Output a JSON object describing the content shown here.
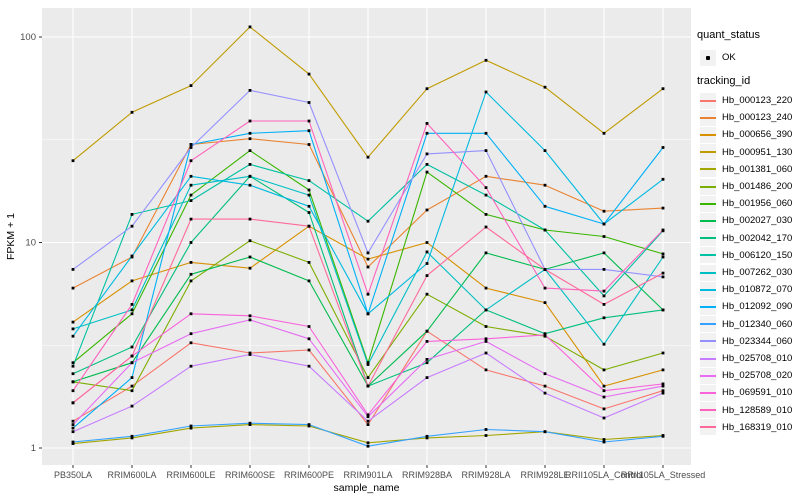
{
  "legend": {
    "quant_status": {
      "title": "quant_status",
      "items": [
        {
          "label": "OK",
          "symbol": "black-point"
        }
      ]
    },
    "tracking_id": {
      "title": "tracking_id"
    }
  },
  "chart_data": {
    "type": "line",
    "title": "",
    "xlabel": "sample_name",
    "ylabel": "FPKM + 1",
    "y_scale": "log10",
    "y_ticks": [
      1,
      10,
      100
    ],
    "y_minor_ticks": [
      3.162,
      31.623
    ],
    "ylim": [
      0.83,
      139
    ],
    "grid": true,
    "panel_bg": "#EBEBEB",
    "grid_color": "#FFFFFF",
    "tick_label_color": "#4D4D4D",
    "point_color": "#000000",
    "legend_position": "right",
    "quant_status_value": "OK",
    "categories": [
      "PB350LA",
      "RRIM600LA",
      "RRIM600LE",
      "RRIM600SE",
      "RRIM600PE",
      "RRIM901LA",
      "RRIM928BA",
      "RRIM928LA",
      "RRIM928LE",
      "RRII105LA_Control",
      "RRII105LA_Stressed"
    ],
    "series": [
      {
        "name": "Hb_000123_220",
        "color": "#F8766D",
        "values": [
          1.35,
          2.0,
          3.25,
          2.9,
          3.0,
          1.3,
          3.7,
          2.4,
          2.0,
          1.55,
          1.9
        ]
      },
      {
        "name": "Hb_000123_240",
        "color": "#EA8331",
        "values": [
          6.0,
          8.5,
          30,
          32,
          30,
          7.6,
          14.4,
          21,
          19,
          14.2,
          14.7
        ]
      },
      {
        "name": "Hb_000656_390",
        "color": "#D89000",
        "values": [
          4.1,
          6.5,
          8.0,
          7.5,
          12,
          8.3,
          10,
          6.0,
          5.1,
          2.0,
          2.4
        ]
      },
      {
        "name": "Hb_000951_130",
        "color": "#C09B00",
        "values": [
          25,
          43,
          58,
          112,
          66,
          26,
          56,
          77,
          57,
          34,
          56
        ]
      },
      {
        "name": "Hb_001381_060",
        "color": "#A3A500",
        "values": [
          1.05,
          1.12,
          1.25,
          1.3,
          1.28,
          1.06,
          1.12,
          1.15,
          1.2,
          1.1,
          1.15
        ]
      },
      {
        "name": "Hb_001486_200",
        "color": "#7CAE00",
        "values": [
          2.1,
          1.9,
          6.5,
          10.2,
          8.0,
          2.2,
          5.6,
          3.9,
          3.5,
          2.4,
          2.9
        ]
      },
      {
        "name": "Hb_001956_060",
        "color": "#39B600",
        "values": [
          2.6,
          4.5,
          17,
          28,
          18,
          2.6,
          22,
          13.7,
          11.5,
          10.7,
          8.8
        ]
      },
      {
        "name": "Hb_002027_030",
        "color": "#00BB4E",
        "values": [
          2.1,
          2.6,
          7.0,
          8.5,
          6.5,
          2.0,
          3.7,
          8.9,
          7.4,
          8.9,
          4.7
        ]
      },
      {
        "name": "Hb_002042_170",
        "color": "#00BF7D",
        "values": [
          2.3,
          3.1,
          10,
          21,
          14,
          2.0,
          2.6,
          4.7,
          3.6,
          4.3,
          4.7
        ]
      },
      {
        "name": "Hb_006120_150",
        "color": "#00C1A3",
        "values": [
          2.5,
          13.7,
          16,
          24,
          20,
          12.7,
          24,
          17,
          11.5,
          5.5,
          11.4
        ]
      },
      {
        "name": "Hb_007262_030",
        "color": "#00BFC4",
        "values": [
          3.8,
          4.7,
          19,
          21,
          17,
          2.55,
          9.0,
          4.7,
          7.4,
          3.2,
          8.5
        ]
      },
      {
        "name": "Hb_010872_070",
        "color": "#00BAE0",
        "values": [
          3.5,
          8.6,
          21,
          19,
          15,
          4.5,
          7.9,
          54,
          28,
          12.3,
          20.3
        ]
      },
      {
        "name": "Hb_012092_090",
        "color": "#00B0F6",
        "values": [
          1.25,
          2.2,
          30,
          34,
          35,
          4.5,
          34,
          34,
          15,
          12.3,
          29
        ]
      },
      {
        "name": "Hb_012340_060",
        "color": "#35A2FF",
        "values": [
          1.07,
          1.14,
          1.28,
          1.32,
          1.3,
          1.02,
          1.14,
          1.23,
          1.2,
          1.07,
          1.14
        ]
      },
      {
        "name": "Hb_023344_060",
        "color": "#9590FF",
        "values": [
          7.4,
          12,
          29,
          55,
          48,
          8.9,
          27,
          28,
          7.4,
          7.4,
          6.8
        ]
      },
      {
        "name": "Hb_025708_010",
        "color": "#C77CFF",
        "values": [
          1.2,
          1.6,
          2.5,
          2.85,
          2.5,
          1.35,
          2.2,
          2.9,
          1.85,
          1.4,
          1.85
        ]
      },
      {
        "name": "Hb_025708_020",
        "color": "#E76BF3",
        "values": [
          1.3,
          2.6,
          3.6,
          4.2,
          3.4,
          1.42,
          2.7,
          3.3,
          2.3,
          1.77,
          2.0
        ]
      },
      {
        "name": "Hb_069591_010",
        "color": "#FA62DB",
        "values": [
          1.66,
          2.8,
          4.5,
          4.4,
          3.9,
          1.45,
          3.3,
          3.4,
          3.55,
          1.9,
          2.05
        ]
      },
      {
        "name": "Hb_128589_010",
        "color": "#FF62BC",
        "values": [
          1.9,
          5.0,
          25,
          39,
          39,
          5.6,
          38,
          18.5,
          6.0,
          5.8,
          11.5
        ]
      },
      {
        "name": "Hb_168319_010",
        "color": "#FF6A98",
        "values": [
          1.66,
          2.8,
          13,
          13,
          12,
          2.0,
          6.9,
          11.9,
          7.4,
          5.0,
          7.1
        ]
      }
    ]
  }
}
